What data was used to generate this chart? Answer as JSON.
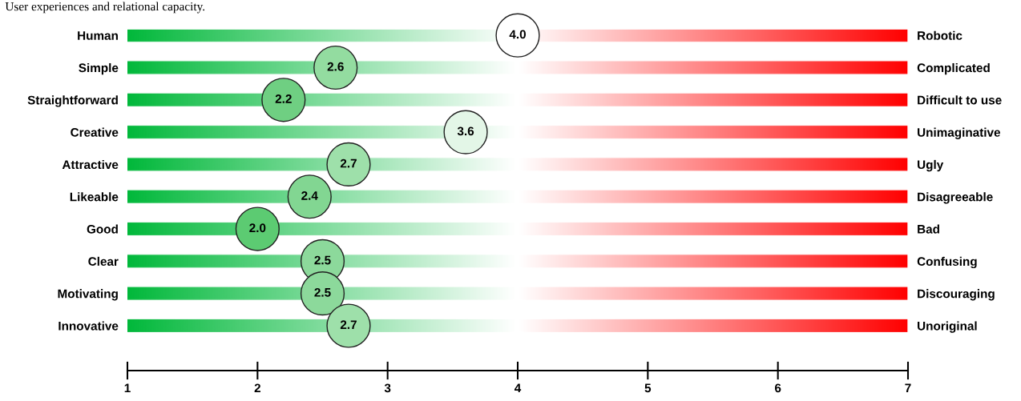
{
  "chart_data": {
    "type": "scatter",
    "orientation": "horizontal",
    "title": "User experiences and relational capacity.",
    "categories": [
      "Human",
      "Simple",
      "Straightforward",
      "Creative",
      "Attractive",
      "Likeable",
      "Good",
      "Clear",
      "Motivating",
      "Innovative"
    ],
    "y2_categories": [
      "Robotic",
      "Complicated",
      "Difficult to use",
      "Unimaginative",
      "Ugly",
      "Disagreeable",
      "Bad",
      "Confusing",
      "Discouraging",
      "Unoriginal"
    ],
    "values": [
      4.0,
      2.6,
      2.2,
      3.6,
      2.7,
      2.4,
      2.0,
      2.5,
      2.5,
      2.7
    ],
    "colors": [
      "#ffffff",
      "#93dca0",
      "#6fcf82",
      "#e3f6e7",
      "#9ee0aa",
      "#82d692",
      "#5ccb72",
      "#8cd99b",
      "#8cd99b",
      "#9ee0aa"
    ],
    "value_labels": [
      "4.0",
      "2.6",
      "2.2",
      "3.6",
      "2.7",
      "2.4",
      "2.0",
      "2.5",
      "2.5",
      "2.7"
    ],
    "xlim": [
      1,
      7
    ],
    "xticks": [
      1,
      2,
      3,
      4,
      5,
      6,
      7
    ]
  }
}
